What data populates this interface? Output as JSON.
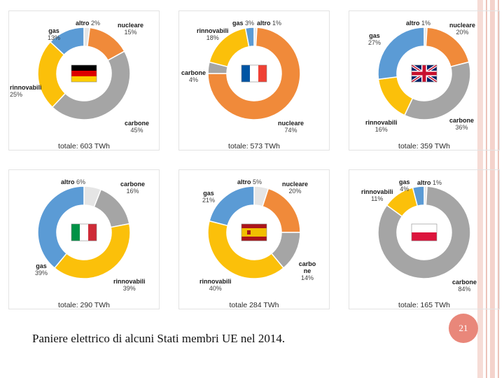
{
  "colors": {
    "altro": "#e5e5e5",
    "nucleare": "#f08a3a",
    "carbone": "#a5a5a5",
    "rinnovabili": "#fbc00a",
    "gas": "#5b9bd5"
  },
  "chart_data": [
    {
      "type": "pie",
      "country": "Germania",
      "flag": "germany-flag",
      "total": "totale: 603 TWh",
      "slices": [
        {
          "name": "altro",
          "label": "altro",
          "pct_text": "2%",
          "value": 2
        },
        {
          "name": "nucleare",
          "label": "nucleare",
          "pct_text": "15%",
          "value": 15
        },
        {
          "name": "carbone",
          "label": "carbone",
          "pct_text": "45%",
          "value": 45
        },
        {
          "name": "rinnovabili",
          "label": "rinnovabili",
          "pct_text": "25%",
          "value": 25
        },
        {
          "name": "gas",
          "label": "gas",
          "pct_text": "13%",
          "value": 13
        }
      ]
    },
    {
      "type": "pie",
      "country": "Francia",
      "flag": "france-flag",
      "total": "totale: 573 TWh",
      "slices": [
        {
          "name": "altro",
          "label": "altro",
          "pct_text": "1%",
          "value": 1
        },
        {
          "name": "nucleare",
          "label": "nucleare",
          "pct_text": "74%",
          "value": 74
        },
        {
          "name": "carbone",
          "label": "carbone",
          "pct_text": "4%",
          "value": 4
        },
        {
          "name": "rinnovabili",
          "label": "rinnovabili",
          "pct_text": "18%",
          "value": 18
        },
        {
          "name": "gas",
          "label": "gas",
          "pct_text": "3%",
          "value": 3
        }
      ]
    },
    {
      "type": "pie",
      "country": "Regno Unito",
      "flag": "uk-flag",
      "total": "totale: 359 TWh",
      "slices": [
        {
          "name": "altro",
          "label": "altro",
          "pct_text": "1%",
          "value": 1
        },
        {
          "name": "nucleare",
          "label": "nucleare",
          "pct_text": "20%",
          "value": 20
        },
        {
          "name": "carbone",
          "label": "carbone",
          "pct_text": "36%",
          "value": 36
        },
        {
          "name": "rinnovabili",
          "label": "rinnovabili",
          "pct_text": "16%",
          "value": 16
        },
        {
          "name": "gas",
          "label": "gas",
          "pct_text": "27%",
          "value": 27
        }
      ]
    },
    {
      "type": "pie",
      "country": "Italia",
      "flag": "italy-flag",
      "total": "totale: 290 TWh",
      "slices": [
        {
          "name": "altro",
          "label": "altro",
          "pct_text": "6%",
          "value": 6
        },
        {
          "name": "carbone",
          "label": "carbone",
          "pct_text": "16%",
          "value": 16
        },
        {
          "name": "rinnovabili",
          "label": "rinnovabili",
          "pct_text": "39%",
          "value": 39
        },
        {
          "name": "gas",
          "label": "gas",
          "pct_text": "39%",
          "value": 39
        }
      ]
    },
    {
      "type": "pie",
      "country": "Spagna",
      "flag": "spain-flag",
      "total": "totale 284 TWh",
      "slices": [
        {
          "name": "altro",
          "label": "altro",
          "pct_text": "5%",
          "value": 5
        },
        {
          "name": "nucleare",
          "label": "nucleare",
          "pct_text": "20%",
          "value": 20
        },
        {
          "name": "carbone",
          "label": "carbo ne",
          "pct_text": "14%",
          "value": 14
        },
        {
          "name": "rinnovabili",
          "label": "rinnovabili",
          "pct_text": "40%",
          "value": 40
        },
        {
          "name": "gas",
          "label": "gas",
          "pct_text": "21%",
          "value": 21
        }
      ]
    },
    {
      "type": "pie",
      "country": "Polonia",
      "flag": "poland-flag",
      "total": "totale: 165 TWh",
      "slices": [
        {
          "name": "altro",
          "label": "altro",
          "pct_text": "1%",
          "value": 1
        },
        {
          "name": "carbone",
          "label": "carbone",
          "pct_text": "84%",
          "value": 84
        },
        {
          "name": "rinnovabili",
          "label": "rinnovabili",
          "pct_text": "11%",
          "value": 11
        },
        {
          "name": "gas",
          "label": "gas",
          "pct_text": "4%",
          "value": 4
        }
      ]
    }
  ],
  "caption": "Paniere elettrico di alcuni Stati membri UE nel 2014.",
  "page_number": "21"
}
